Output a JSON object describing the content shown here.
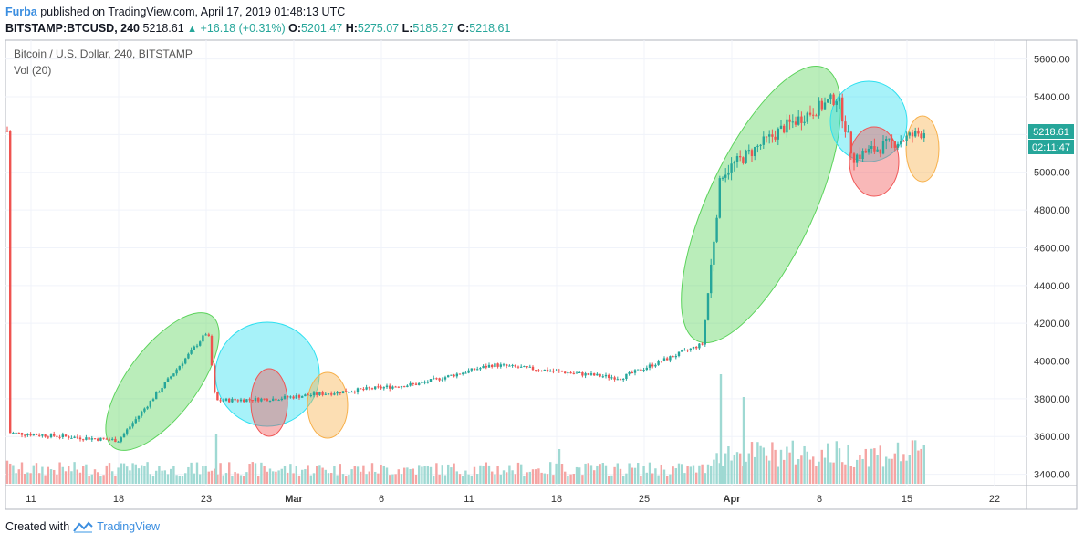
{
  "header": {
    "author": "Furba",
    "published_text": "published on TradingView.com, April 17, 2019 01:48:13 UTC",
    "symbol": "BITSTAMP:BTCUSD, 240",
    "last": "5218.61",
    "change": "+16.18 (+0.31%)",
    "o_label": "O:",
    "o_value": "5201.47",
    "h_label": "H:",
    "h_value": "5275.07",
    "l_label": "L:",
    "l_value": "5185.27",
    "c_label": "C:",
    "c_value": "5218.61"
  },
  "legend": {
    "title": "Bitcoin / U.S. Dollar, 240, BITSTAMP",
    "volume": "Vol (20)"
  },
  "price_badge": "5218.61",
  "countdown_badge": "02:11:47",
  "footer": {
    "created_with": "Created with",
    "brand": "TradingView"
  },
  "colors": {
    "up": "#26a69a",
    "down": "#ef5350",
    "ellipse_green": "#5bd35b",
    "ellipse_cyan": "#2ee0f0",
    "ellipse_red": "#f05555",
    "ellipse_orange": "#f7b04a"
  },
  "chart_data": {
    "type": "candlestick",
    "y_ticks": [
      "5600.00",
      "5400.00",
      "5200.00",
      "5000.00",
      "4800.00",
      "4600.00",
      "4400.00",
      "4200.00",
      "4000.00",
      "3800.00",
      "3600.00",
      "3400.00"
    ],
    "y_range": [
      3340,
      5700
    ],
    "x_ticks": [
      "11",
      "18",
      "23",
      "Mar",
      "6",
      "11",
      "18",
      "25",
      "Apr",
      "8",
      "15",
      "22"
    ],
    "price_path": [
      [
        "11",
        3620
      ],
      [
        "18",
        3580
      ],
      [
        "23",
        4160
      ],
      [
        "23",
        3790
      ],
      [
        "Mar",
        3800
      ],
      [
        "6",
        3840
      ],
      [
        "11",
        3880
      ],
      [
        "18",
        3980
      ],
      [
        "25",
        3910
      ],
      [
        "Apr",
        4090
      ],
      [
        "Apr",
        4990
      ],
      [
        "8",
        5240
      ],
      [
        "8",
        5400
      ],
      [
        "15",
        5080
      ],
      [
        "15",
        5218.61
      ]
    ]
  }
}
